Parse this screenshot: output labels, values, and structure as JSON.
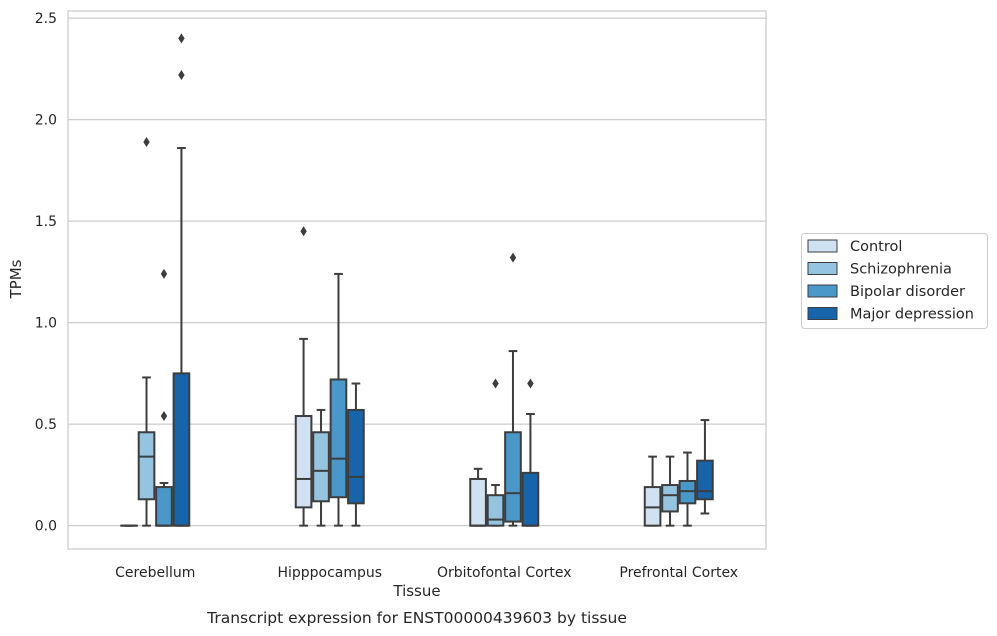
{
  "chart_data": {
    "type": "box",
    "title": "",
    "xlabel": "Tissue",
    "ylabel": "TPMs",
    "caption": "Transcript expression for ENST00000439603 by tissue",
    "ylim": [
      -0.115,
      2.535
    ],
    "yticks": [
      "0.0",
      "0.5",
      "1.0",
      "1.5",
      "2.0",
      "2.5"
    ],
    "grid": "horizontal",
    "legend_position": "right",
    "categories": [
      "Cerebellum",
      "Hipppocampus",
      "Orbitofontal Cortex",
      "Prefrontal Cortex"
    ],
    "series": [
      {
        "name": "Control",
        "color": "#d0e1f2",
        "boxes": [
          {
            "whislo": 0.0,
            "q1": 0.0,
            "med": 0.0,
            "q3": 0.0,
            "whishi": 0.0,
            "fliers": []
          },
          {
            "whislo": 0.0,
            "q1": 0.09,
            "med": 0.23,
            "q3": 0.54,
            "whishi": 0.92,
            "fliers": [
              1.45
            ]
          },
          {
            "whislo": 0.0,
            "q1": 0.0,
            "med": 0.0,
            "q3": 0.23,
            "whishi": 0.28,
            "fliers": []
          },
          {
            "whislo": 0.0,
            "q1": 0.0,
            "med": 0.09,
            "q3": 0.19,
            "whishi": 0.34,
            "fliers": []
          }
        ]
      },
      {
        "name": "Schizophrenia",
        "color": "#94c4df",
        "boxes": [
          {
            "whislo": 0.0,
            "q1": 0.13,
            "med": 0.34,
            "q3": 0.46,
            "whishi": 0.73,
            "fliers": [
              1.89
            ]
          },
          {
            "whislo": 0.0,
            "q1": 0.12,
            "med": 0.27,
            "q3": 0.46,
            "whishi": 0.57,
            "fliers": []
          },
          {
            "whislo": 0.0,
            "q1": 0.0,
            "med": 0.03,
            "q3": 0.15,
            "whishi": 0.2,
            "fliers": [
              0.7
            ]
          },
          {
            "whislo": 0.0,
            "q1": 0.07,
            "med": 0.15,
            "q3": 0.2,
            "whishi": 0.34,
            "fliers": []
          }
        ]
      },
      {
        "name": "Bipolar disorder",
        "color": "#4a98c9",
        "boxes": [
          {
            "whislo": 0.0,
            "q1": 0.0,
            "med": 0.0,
            "q3": 0.19,
            "whishi": 0.21,
            "fliers": [
              0.54,
              1.24
            ]
          },
          {
            "whislo": 0.0,
            "q1": 0.14,
            "med": 0.33,
            "q3": 0.72,
            "whishi": 1.24,
            "fliers": []
          },
          {
            "whislo": 0.0,
            "q1": 0.02,
            "med": 0.16,
            "q3": 0.46,
            "whishi": 0.86,
            "fliers": [
              1.32
            ]
          },
          {
            "whislo": 0.0,
            "q1": 0.11,
            "med": 0.17,
            "q3": 0.22,
            "whishi": 0.36,
            "fliers": []
          }
        ]
      },
      {
        "name": "Major depression",
        "color": "#1764ab",
        "boxes": [
          {
            "whislo": 0.0,
            "q1": 0.0,
            "med": 0.0,
            "q3": 0.75,
            "whishi": 1.86,
            "fliers": [
              2.22,
              2.4
            ]
          },
          {
            "whislo": 0.0,
            "q1": 0.11,
            "med": 0.24,
            "q3": 0.57,
            "whishi": 0.7,
            "fliers": []
          },
          {
            "whislo": 0.0,
            "q1": 0.0,
            "med": 0.0,
            "q3": 0.26,
            "whishi": 0.55,
            "fliers": [
              0.7
            ]
          },
          {
            "whislo": 0.06,
            "q1": 0.13,
            "med": 0.17,
            "q3": 0.32,
            "whishi": 0.52,
            "fliers": []
          }
        ]
      }
    ]
  }
}
